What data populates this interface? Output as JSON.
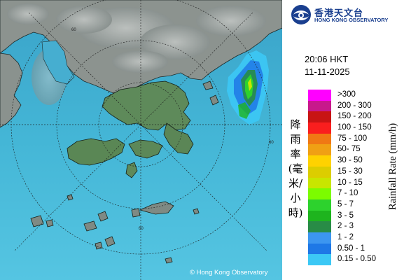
{
  "branding": {
    "name_cn": "香港天文台",
    "name_en": "HONG KONG OBSERVATORY"
  },
  "timestamp": {
    "time": "20:06 HKT",
    "date": "11-11-2025"
  },
  "legend": {
    "title_cn": "降雨率(毫米/小時)",
    "title_en": "Rainfall Rate (mm/h)",
    "classes": [
      {
        "label": ">300",
        "color": "#ff00ff"
      },
      {
        "label": "200 - 300",
        "color": "#c8188c"
      },
      {
        "label": "150 - 200",
        "color": "#c81414"
      },
      {
        "label": "100 - 150",
        "color": "#fa1e1e"
      },
      {
        "label": "75 - 100",
        "color": "#f07814"
      },
      {
        "label": "50- 75",
        "color": "#f0a014"
      },
      {
        "label": "30 - 50",
        "color": "#ffd200"
      },
      {
        "label": "15 - 30",
        "color": "#dccd00"
      },
      {
        "label": "10 - 15",
        "color": "#c8e600"
      },
      {
        "label": "7 - 10",
        "color": "#7cfc00"
      },
      {
        "label": "5 - 7",
        "color": "#2dd22d"
      },
      {
        "label": "3 - 5",
        "color": "#1eb41e"
      },
      {
        "label": "2 - 3",
        "color": "#288c46"
      },
      {
        "label": "1 - 2",
        "color": "#3c96f0"
      },
      {
        "label": "0.50 - 1",
        "color": "#1e78e6"
      },
      {
        "label": "0.15 - 0.50",
        "color": "#3cc8f5"
      }
    ]
  },
  "map": {
    "range_ring_label": "60",
    "copyright": "© Hong Kong Observatory"
  }
}
